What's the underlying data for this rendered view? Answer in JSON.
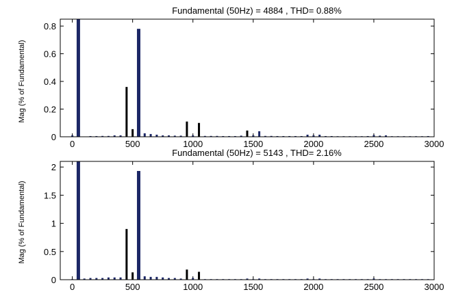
{
  "figure": {
    "background": "#ffffff",
    "bar_color_tall": "#1c2766",
    "bar_color_mid": "#000000"
  },
  "chart_data": [
    {
      "type": "bar",
      "title": "Fundamental (50Hz) = 4884 , THD= 0.88%",
      "xlabel": "",
      "ylabel": "Mag (% of Fundamental)",
      "xlim": [
        -100,
        3000
      ],
      "ylim": [
        0,
        0.85
      ],
      "xticks": [
        0,
        500,
        1000,
        1500,
        2000,
        2500,
        3000
      ],
      "yticks": [
        0,
        0.2,
        0.4,
        0.6,
        0.8
      ],
      "grid": false,
      "x": [
        0,
        50,
        150,
        200,
        250,
        300,
        350,
        400,
        450,
        500,
        550,
        600,
        650,
        700,
        750,
        800,
        850,
        900,
        950,
        1000,
        1050,
        1100,
        1150,
        1200,
        1250,
        1300,
        1350,
        1400,
        1450,
        1500,
        1550,
        1600,
        1650,
        1700,
        1750,
        1800,
        1850,
        1900,
        1950,
        2000,
        2050,
        2100,
        2150,
        2200,
        2250,
        2300,
        2350,
        2400,
        2450,
        2500,
        2550,
        2600,
        2650,
        2700,
        2750,
        2800,
        2850,
        2900,
        2950
      ],
      "values": [
        0.01,
        0.85,
        0.005,
        0.005,
        0.006,
        0.006,
        0.01,
        0.01,
        0.36,
        0.055,
        0.78,
        0.025,
        0.02,
        0.015,
        0.01,
        0.01,
        0.008,
        0.008,
        0.11,
        0.01,
        0.1,
        0.006,
        0.006,
        0.006,
        0.005,
        0.005,
        0.005,
        0.008,
        0.045,
        0.01,
        0.04,
        0.006,
        0.006,
        0.005,
        0.005,
        0.005,
        0.005,
        0.005,
        0.015,
        0.01,
        0.015,
        0.005,
        0.005,
        0.004,
        0.004,
        0.004,
        0.004,
        0.004,
        0.005,
        0.012,
        0.008,
        0.01,
        0.004,
        0.004,
        0.004,
        0.004,
        0.004,
        0.004,
        0.005
      ]
    },
    {
      "type": "bar",
      "title": "Fundamental (50Hz) = 5143 , THD= 2.16%",
      "xlabel": "",
      "ylabel": "Mag (% of Fundamental)",
      "xlim": [
        -100,
        3000
      ],
      "ylim": [
        0,
        2.1
      ],
      "xticks": [
        0,
        500,
        1000,
        1500,
        2000,
        2500,
        3000
      ],
      "yticks": [
        0,
        0.5,
        1,
        1.5,
        2
      ],
      "grid": false,
      "x": [
        0,
        50,
        100,
        150,
        200,
        250,
        300,
        350,
        400,
        450,
        500,
        550,
        600,
        650,
        700,
        750,
        800,
        850,
        900,
        950,
        1000,
        1050,
        1100,
        1150,
        1200,
        1250,
        1300,
        1350,
        1400,
        1450,
        1500,
        1550,
        1600,
        1650,
        1700,
        1750,
        1800,
        1850,
        1900,
        1950,
        2000,
        2050,
        2100,
        2150,
        2200,
        2250,
        2300,
        2350,
        2400,
        2450,
        2500,
        2550,
        2600,
        2650,
        2700,
        2750,
        2800,
        2850,
        2900,
        2950
      ],
      "values": [
        0.01,
        2.1,
        0.02,
        0.03,
        0.03,
        0.03,
        0.04,
        0.04,
        0.04,
        0.9,
        0.13,
        1.93,
        0.06,
        0.05,
        0.05,
        0.04,
        0.03,
        0.03,
        0.02,
        0.18,
        0.03,
        0.14,
        0.01,
        0.01,
        0.01,
        0.01,
        0.01,
        0.01,
        0.01,
        0.02,
        0.01,
        0.02,
        0.01,
        0.01,
        0.01,
        0.01,
        0.01,
        0.01,
        0.01,
        0.02,
        0.01,
        0.02,
        0.01,
        0.01,
        0.01,
        0.01,
        0.01,
        0.01,
        0.01,
        0.01,
        0.02,
        0.01,
        0.01,
        0.01,
        0.01,
        0.01,
        0.01,
        0.01,
        0.01,
        0.01
      ]
    }
  ]
}
